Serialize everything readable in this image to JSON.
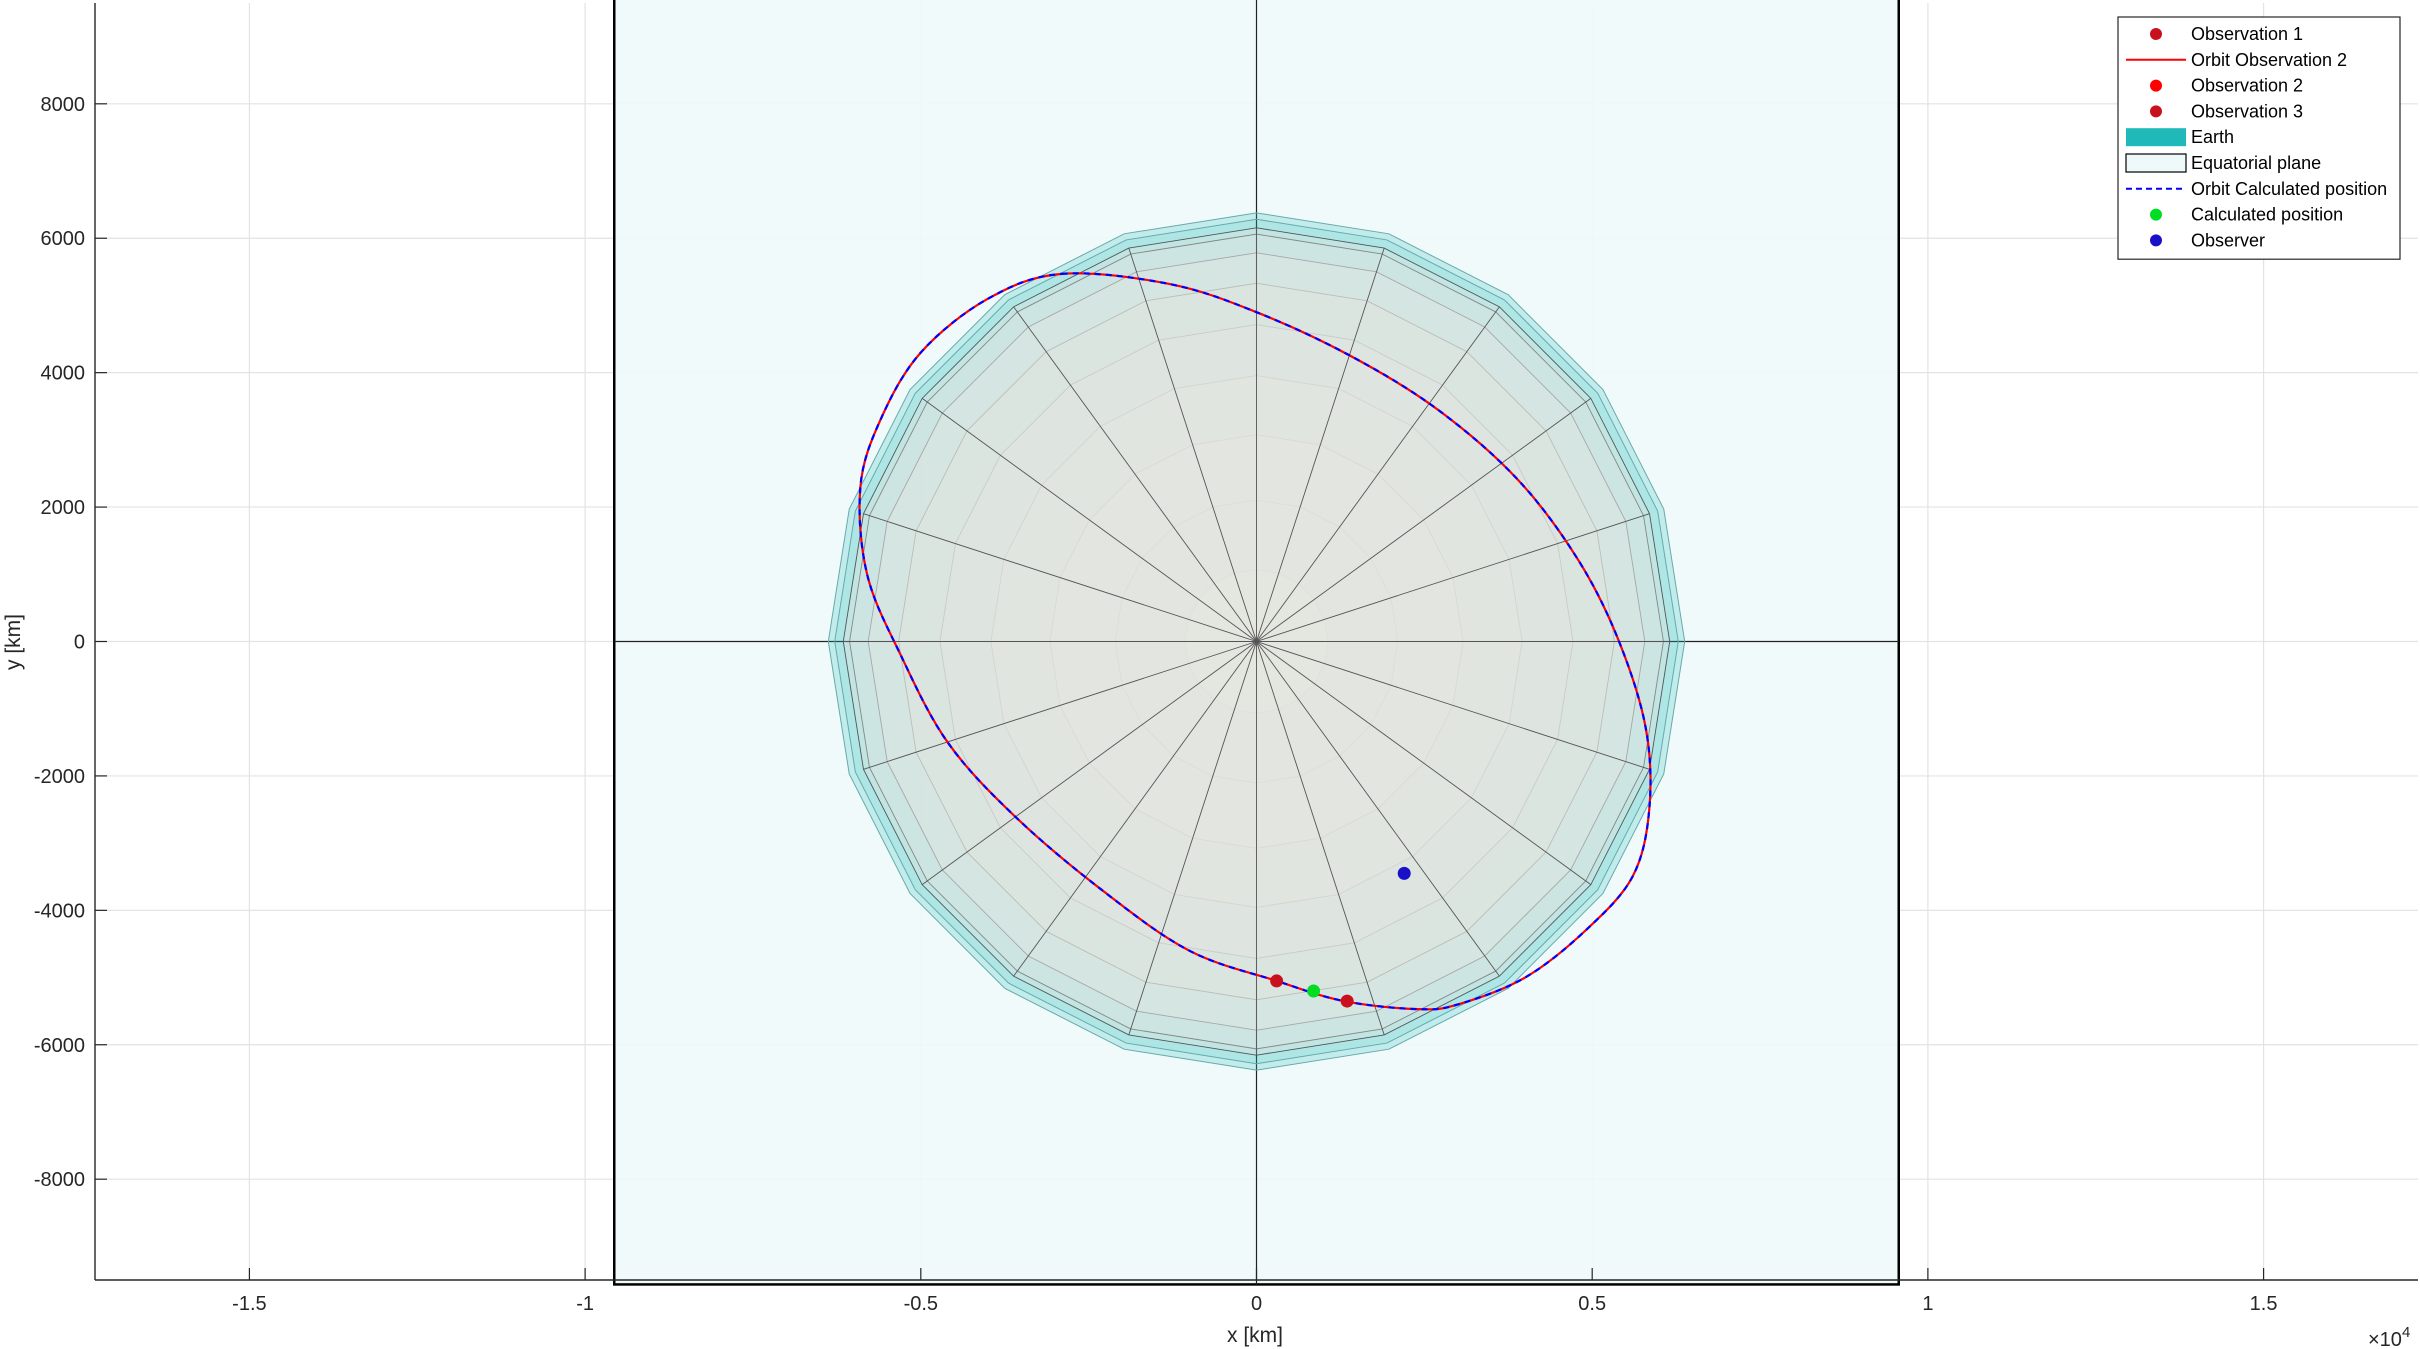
{
  "chart_data": {
    "type": "scatter",
    "xlabel": "x [km]",
    "ylabel": "y [km]",
    "xlim": [
      -17300,
      17300
    ],
    "ylim": [
      -9500,
      9500
    ],
    "x_exponent_label": "×10^4",
    "x_exponent_base": "×10",
    "x_exponent_power": "4",
    "xticks": [
      -15000,
      -10000,
      -5000,
      0,
      5000,
      10000,
      15000
    ],
    "xtick_labels": [
      "-1.5",
      "-1",
      "-0.5",
      "0",
      "0.5",
      "1",
      "1.5"
    ],
    "yticks": [
      -8000,
      -6000,
      -4000,
      -2000,
      0,
      2000,
      4000,
      6000,
      8000
    ],
    "ytick_labels": [
      "-8000",
      "-6000",
      "-4000",
      "-2000",
      "0",
      "2000",
      "4000",
      "6000",
      "8000"
    ],
    "grid": true,
    "legend_position": "top-right",
    "earth": {
      "radius": 6378,
      "color": "#1fb9b9"
    },
    "equatorial_plane": {
      "half_size": 9566,
      "color": "#eef9f9"
    },
    "orbit": {
      "points": [
        [
          -2900,
          5470
        ],
        [
          -1300,
          5320
        ],
        [
          0,
          4900
        ],
        [
          1400,
          4250
        ],
        [
          2700,
          3450
        ],
        [
          3900,
          2400
        ],
        [
          4800,
          1200
        ],
        [
          5400,
          0
        ],
        [
          5800,
          -1300
        ],
        [
          5850,
          -2500
        ],
        [
          5600,
          -3500
        ],
        [
          4900,
          -4300
        ],
        [
          4000,
          -5000
        ],
        [
          3000,
          -5400
        ],
        [
          2400,
          -5470
        ],
        [
          1300,
          -5350
        ],
        [
          300,
          -5050
        ],
        [
          -1000,
          -4600
        ],
        [
          -2300,
          -3700
        ],
        [
          -3600,
          -2600
        ],
        [
          -4600,
          -1500
        ],
        [
          -5300,
          -200
        ],
        [
          -5800,
          1000
        ],
        [
          -5900,
          2300
        ],
        [
          -5600,
          3300
        ],
        [
          -5000,
          4300
        ],
        [
          -4000,
          5100
        ],
        [
          -2900,
          5470
        ]
      ]
    },
    "series": [
      {
        "name": "Observation 1",
        "type": "point",
        "x": 300,
        "y": -5050,
        "color": "#c8101e"
      },
      {
        "name": "Orbit Observation 2",
        "type": "line",
        "color": "#ff0000",
        "style": "solid"
      },
      {
        "name": "Observation 2",
        "type": "point",
        "color": "#ff0000"
      },
      {
        "name": "Observation 3",
        "type": "point",
        "x": 1350,
        "y": -5350,
        "color": "#c8101e"
      },
      {
        "name": "Earth",
        "type": "surface",
        "color": "#1fb9b9"
      },
      {
        "name": "Equatorial plane",
        "type": "patch",
        "color": "#eef9f9"
      },
      {
        "name": "Orbit Calculated position",
        "type": "line",
        "color": "#0000ff",
        "style": "dashed"
      },
      {
        "name": "Calculated position",
        "type": "point",
        "x": 850,
        "y": -5200,
        "color": "#00dd22"
      },
      {
        "name": "Observer",
        "type": "point",
        "x": 2200,
        "y": -3450,
        "color": "#1a10c8"
      }
    ]
  }
}
